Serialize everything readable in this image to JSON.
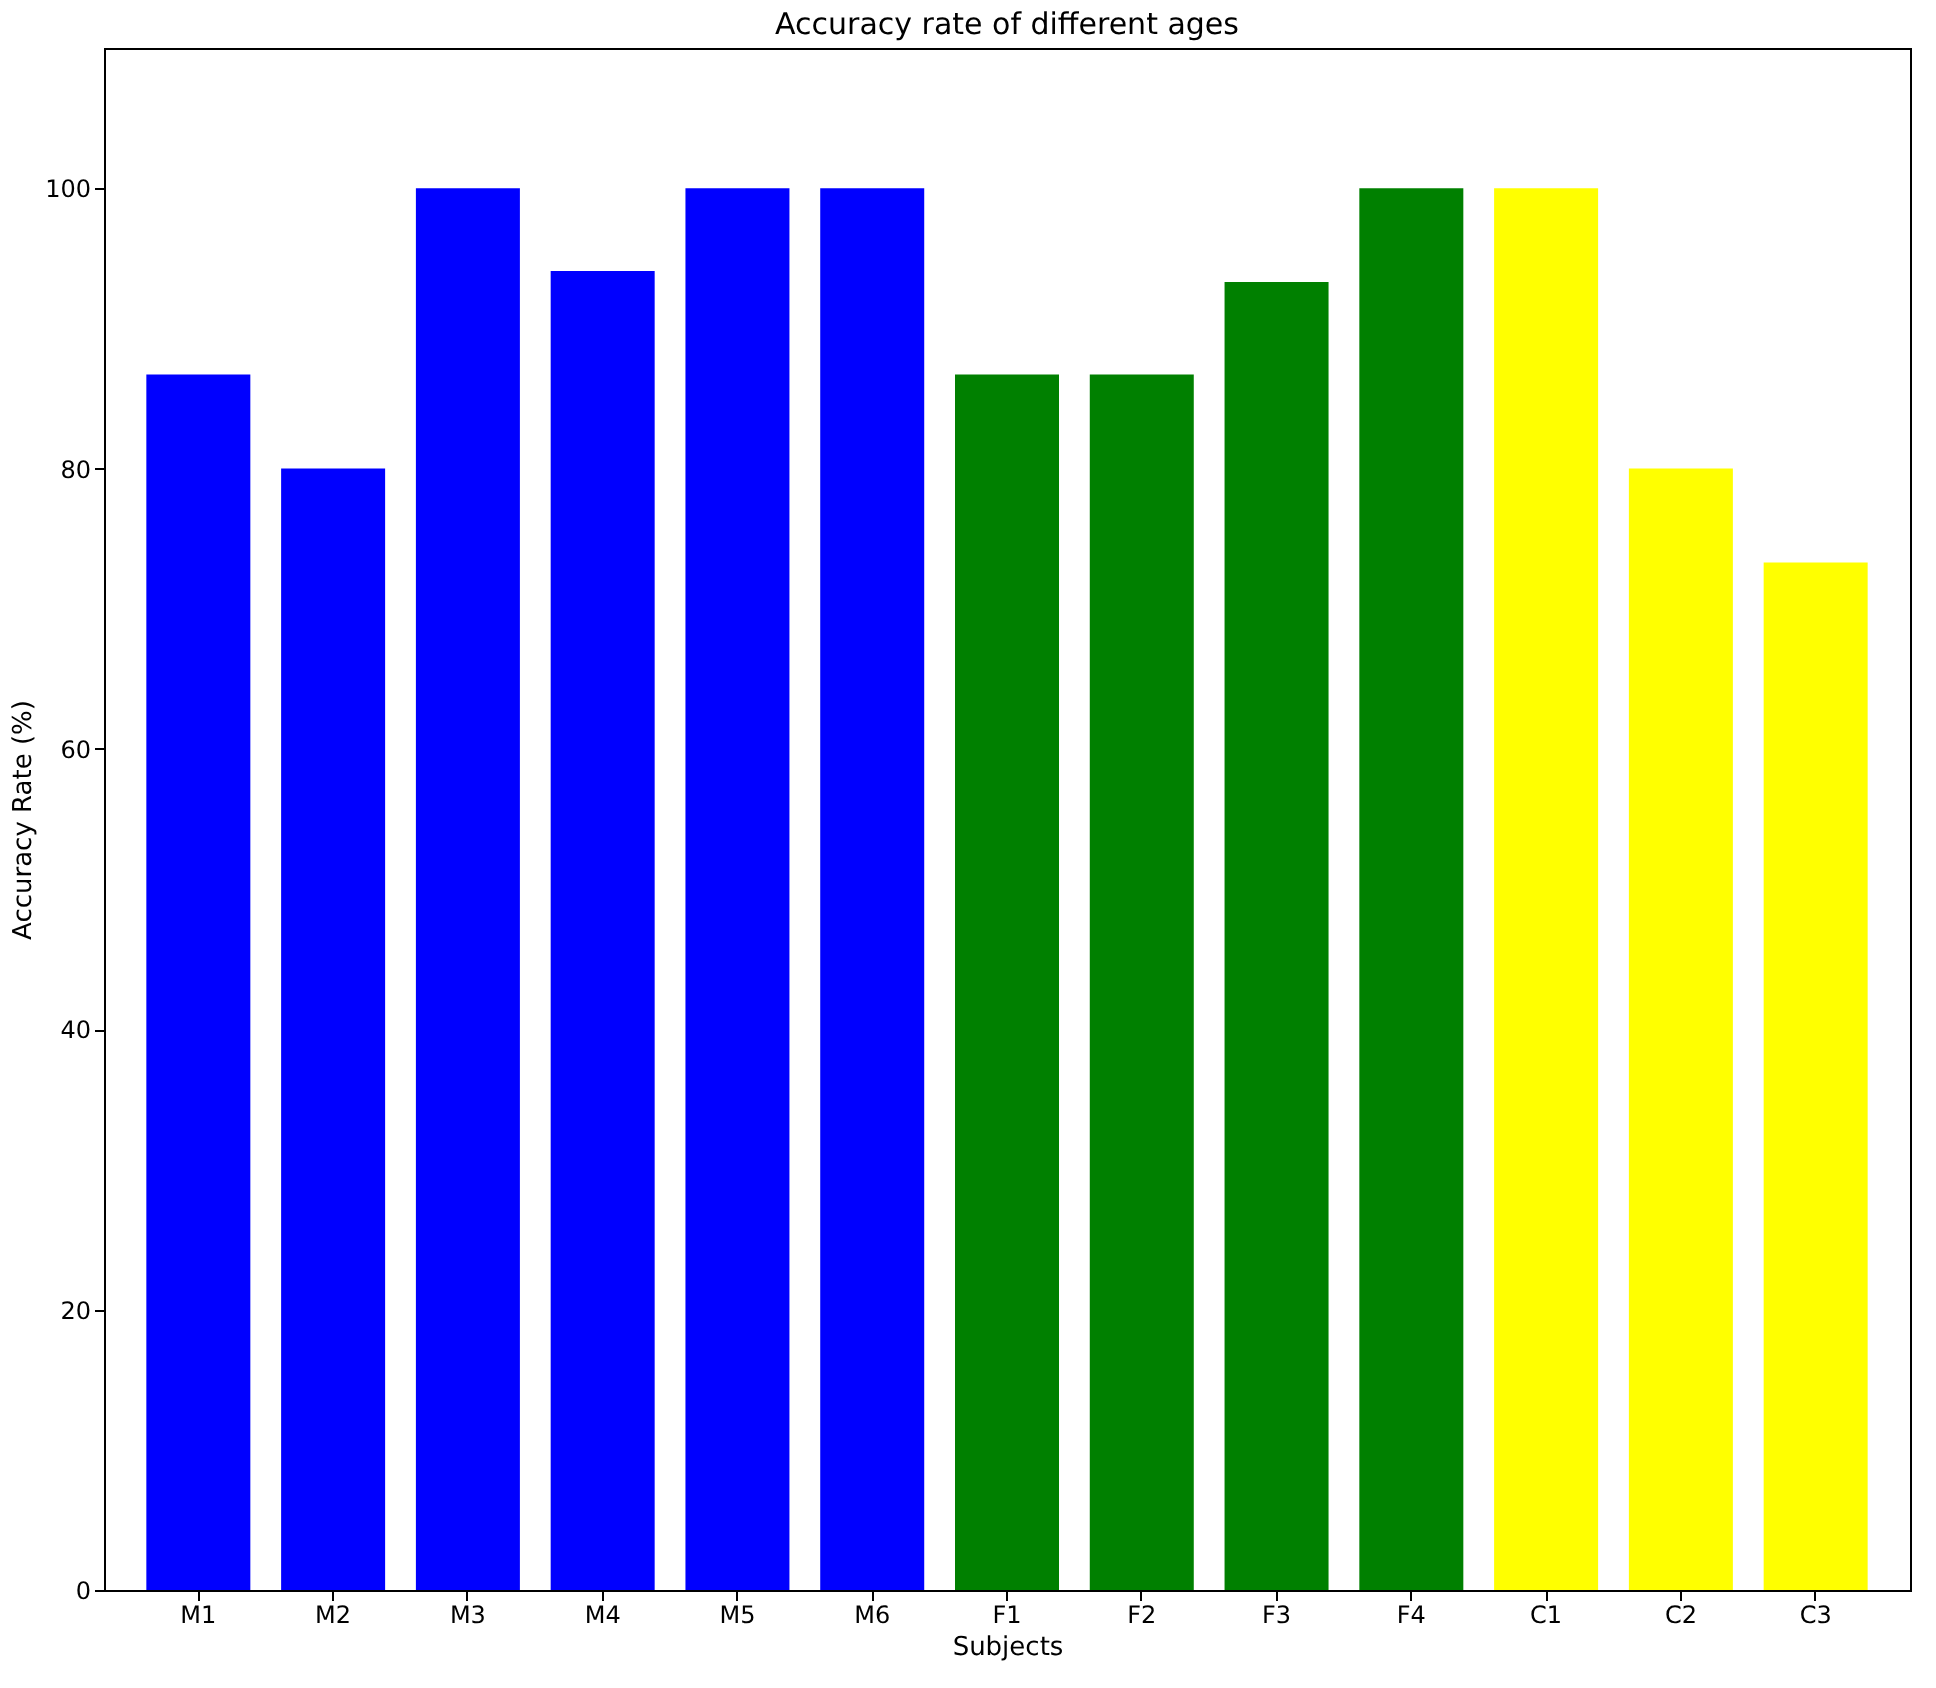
{
  "chart_data": {
    "type": "bar",
    "title": "Accuracy rate of different ages",
    "xlabel": "Subjects",
    "ylabel": "Accuracy Rate (%)",
    "categories": [
      "M1",
      "M2",
      "M3",
      "M4",
      "M5",
      "M6",
      "F1",
      "F2",
      "F3",
      "F4",
      "C1",
      "C2",
      "C3"
    ],
    "values": [
      86.7,
      80,
      100,
      94.1,
      100,
      100,
      86.7,
      86.7,
      93.3,
      100,
      100,
      80,
      73.3
    ],
    "colors": [
      "#0000ff",
      "#0000ff",
      "#0000ff",
      "#0000ff",
      "#0000ff",
      "#0000ff",
      "#008000",
      "#008000",
      "#008000",
      "#008000",
      "#ffff00",
      "#ffff00",
      "#ffff00"
    ],
    "ylim": [
      0,
      110
    ],
    "yticks": [
      0,
      20,
      40,
      60,
      80,
      100
    ],
    "grid": false
  }
}
